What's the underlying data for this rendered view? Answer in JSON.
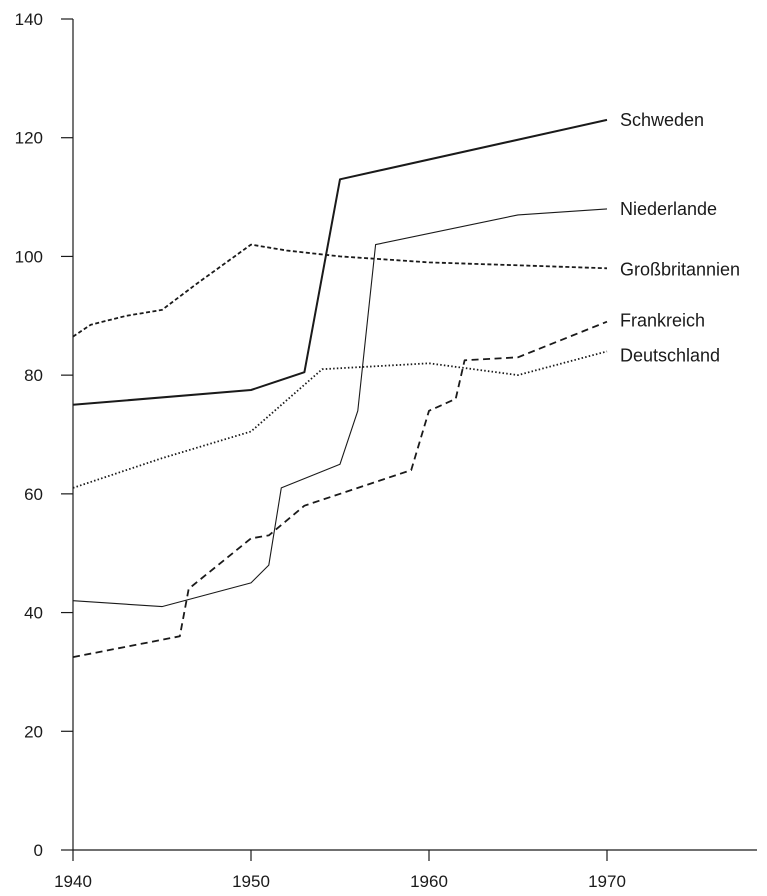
{
  "chart_data": {
    "type": "line",
    "title": "",
    "xlabel": "",
    "ylabel": "",
    "xlim": [
      1940,
      1978
    ],
    "ylim": [
      0,
      140
    ],
    "x_ticks": [
      1940,
      1950,
      1960,
      1970
    ],
    "y_ticks": [
      0,
      20,
      40,
      60,
      80,
      100,
      120,
      140
    ],
    "grid": false,
    "legend": "direct labels at right end of lines",
    "series": [
      {
        "name": "Schweden",
        "style": "solid-thick",
        "points": [
          [
            1940,
            75
          ],
          [
            1950,
            77.5
          ],
          [
            1953,
            80.5
          ],
          [
            1955,
            113
          ],
          [
            1970,
            123
          ]
        ]
      },
      {
        "name": "Niederlande",
        "style": "solid-thin",
        "points": [
          [
            1940,
            42
          ],
          [
            1945,
            41
          ],
          [
            1950,
            45
          ],
          [
            1951,
            48
          ],
          [
            1951.7,
            61
          ],
          [
            1955,
            65
          ],
          [
            1956,
            74
          ],
          [
            1957,
            102
          ],
          [
            1965,
            107
          ],
          [
            1970,
            108
          ]
        ]
      },
      {
        "name": "Großbritannien",
        "style": "dashed-short",
        "points": [
          [
            1940,
            86.5
          ],
          [
            1941,
            88.5
          ],
          [
            1943,
            90
          ],
          [
            1945,
            91
          ],
          [
            1947,
            95.5
          ],
          [
            1950,
            102
          ],
          [
            1952,
            101
          ],
          [
            1955,
            100
          ],
          [
            1960,
            99
          ],
          [
            1965,
            98.5
          ],
          [
            1970,
            98
          ]
        ]
      },
      {
        "name": "Frankreich",
        "style": "dashed-long",
        "points": [
          [
            1940,
            32.5
          ],
          [
            1946,
            36
          ],
          [
            1946.5,
            44
          ],
          [
            1950,
            52.5
          ],
          [
            1951,
            53
          ],
          [
            1953,
            58
          ],
          [
            1959,
            64
          ],
          [
            1960,
            74
          ],
          [
            1961.5,
            76
          ],
          [
            1962,
            82.5
          ],
          [
            1965,
            83
          ],
          [
            1970,
            89
          ]
        ]
      },
      {
        "name": "Deutschland",
        "style": "dotted",
        "points": [
          [
            1940,
            61
          ],
          [
            1945,
            66
          ],
          [
            1950,
            70.5
          ],
          [
            1954,
            81
          ],
          [
            1960,
            82
          ],
          [
            1965,
            80
          ],
          [
            1970,
            84
          ]
        ]
      }
    ]
  }
}
